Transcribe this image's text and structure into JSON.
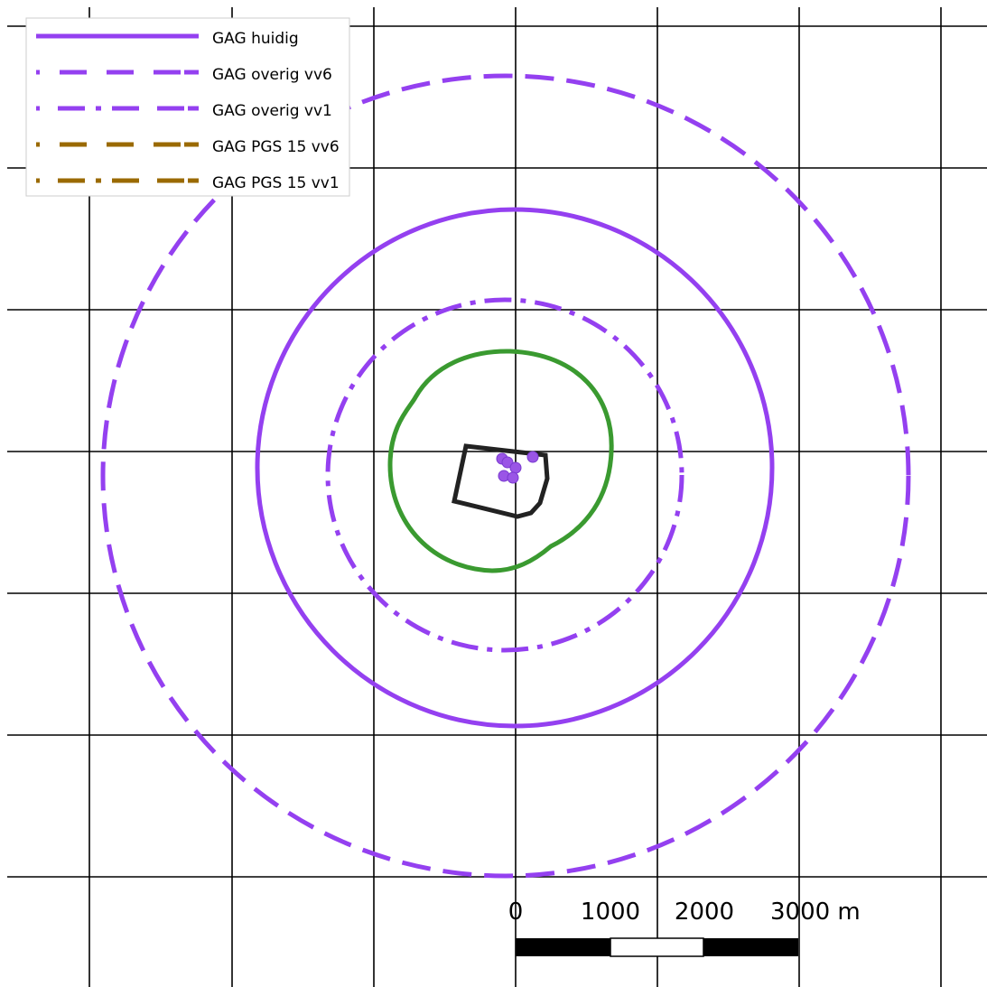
{
  "legend": [
    {
      "label": "GAG huidig",
      "color": "#9440f0",
      "dash": "solid"
    },
    {
      "label": "GAG overig vv6",
      "color": "#9440f0",
      "dash": "dash"
    },
    {
      "label": "GAG overig vv1",
      "color": "#9440f0",
      "dash": "dashdot"
    },
    {
      "label": "GAG PGS 15 vv6",
      "color": "#9a6a00",
      "dash": "dash"
    },
    {
      "label": "GAG PGS 15 vv1",
      "color": "#9a6a00",
      "dash": "dashdot"
    }
  ],
  "scale_bar": {
    "labels": [
      "0",
      "1000",
      "2000",
      "3000 m"
    ]
  }
}
